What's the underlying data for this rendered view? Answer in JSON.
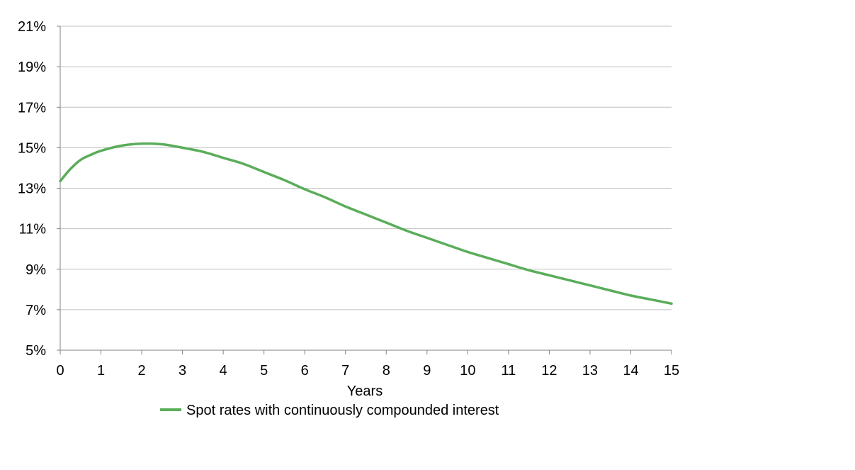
{
  "chart_data": {
    "type": "line",
    "title": "",
    "xlabel": "Years",
    "ylabel": "",
    "xlim": [
      0,
      15
    ],
    "ylim": [
      5,
      21
    ],
    "x_ticks": [
      "0",
      "1",
      "2",
      "3",
      "4",
      "5",
      "6",
      "7",
      "8",
      "9",
      "10",
      "11",
      "12",
      "13",
      "14",
      "15"
    ],
    "y_ticks": [
      "5%",
      "7%",
      "9%",
      "11%",
      "13%",
      "15%",
      "17%",
      "19%",
      "21%"
    ],
    "grid": "horizontal",
    "legend_position": "bottom",
    "colors": {
      "series": "#5aad5a",
      "grid": "#c0c0c0",
      "axis": "#808080"
    },
    "series": [
      {
        "name": "Spot rates with continuously compounded interest",
        "x": [
          0,
          0.25,
          0.5,
          0.75,
          1,
          1.5,
          2,
          2.5,
          3,
          3.5,
          4,
          4.5,
          5,
          5.5,
          6,
          6.5,
          7,
          7.5,
          8,
          8.5,
          9,
          9.5,
          10,
          10.5,
          11,
          11.5,
          12,
          12.5,
          13,
          13.5,
          14,
          14.5,
          15
        ],
        "values": [
          13.35,
          13.95,
          14.4,
          14.65,
          14.85,
          15.1,
          15.2,
          15.17,
          15.0,
          14.8,
          14.5,
          14.2,
          13.8,
          13.4,
          12.95,
          12.55,
          12.1,
          11.7,
          11.3,
          10.9,
          10.55,
          10.2,
          9.85,
          9.55,
          9.25,
          8.95,
          8.7,
          8.45,
          8.2,
          7.95,
          7.7,
          7.5,
          7.3
        ]
      }
    ]
  }
}
